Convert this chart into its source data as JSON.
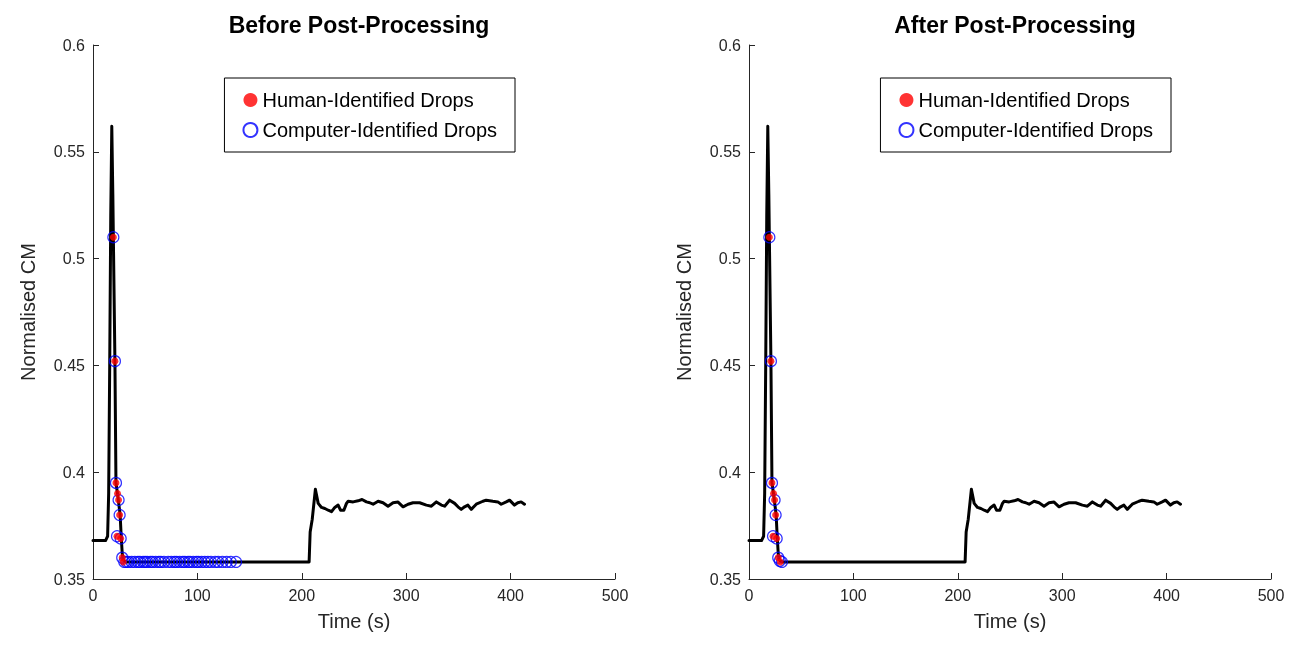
{
  "chart_data": [
    {
      "type": "line",
      "title": "Before Post-Processing",
      "xlabel": "Time (s)",
      "ylabel": "Normalised CM",
      "xlim": [
        0,
        500
      ],
      "xticks": [
        0,
        100,
        200,
        300,
        400,
        500
      ],
      "ylim": [
        0.35,
        0.6
      ],
      "yticks": [
        0.35,
        0.4,
        0.45,
        0.5,
        0.55,
        0.6
      ],
      "grid": false,
      "legend": "top right",
      "series": [
        {
          "color": "#000000",
          "marker": "none",
          "line_style": "solid",
          "x": [
            0,
            12,
            14,
            15,
            16,
            17,
            18,
            19,
            19.5,
            21,
            22,
            24,
            26,
            27,
            28,
            29,
            31,
            100,
            150,
            207,
            208,
            210,
            213,
            215.7,
            218.9,
            222.1,
            225.3,
            228.5,
            231.6,
            234.8,
            237.1,
            240.3,
            242.8,
            244.4,
            249.2,
            253.9,
            257.7,
            261.9,
            265.1,
            268.3,
            273.1,
            277.8,
            282.6,
            287.4,
            292.2,
            297,
            301.8,
            306.5,
            312.9,
            319.3,
            324.1,
            328.9,
            333.7,
            336.8,
            341.6,
            346.4,
            349.6,
            352.7,
            355.9,
            359.1,
            362.3,
            367.1,
            373.5,
            376.6,
            383,
            387.8,
            391,
            395.8,
            399,
            403.7,
            406.9,
            410.1,
            413.3
          ],
          "values": [
            0.368,
            0.368,
            0.37,
            0.39,
            0.45,
            0.52,
            0.562,
            0.53,
            0.51,
            0.452,
            0.395,
            0.388,
            0.38,
            0.37,
            0.362,
            0.359,
            0.358,
            0.358,
            0.358,
            0.358,
            0.372,
            0.378,
            0.392,
            0.3854,
            0.3835,
            0.383,
            0.3822,
            0.3815,
            0.3835,
            0.3846,
            0.3822,
            0.3822,
            0.3854,
            0.3864,
            0.3861,
            0.3866,
            0.3872,
            0.3861,
            0.3857,
            0.385,
            0.3864,
            0.3857,
            0.3841,
            0.3857,
            0.386,
            0.3838,
            0.385,
            0.3857,
            0.3857,
            0.3846,
            0.3841,
            0.3861,
            0.3846,
            0.3841,
            0.3869,
            0.3854,
            0.3838,
            0.3826,
            0.3838,
            0.3846,
            0.3826,
            0.385,
            0.3864,
            0.3869,
            0.3864,
            0.3861,
            0.385,
            0.3861,
            0.3869,
            0.3846,
            0.3857,
            0.3861,
            0.385
          ]
        },
        {
          "type": "scatter",
          "name": "Human-Identified Drops",
          "color": "#ff0000",
          "marker": "circle",
          "x": [
            19.5,
            21,
            22,
            23.5,
            24.5,
            25.5,
            23,
            26.5,
            28,
            29
          ],
          "values": [
            0.51,
            0.452,
            0.395,
            0.39,
            0.387,
            0.38,
            0.37,
            0.369,
            0.36,
            0.358
          ]
        },
        {
          "type": "scatter",
          "name": "Computer-Identified Drops",
          "color": "#0000ff",
          "marker": "circle",
          "x": [
            19.5,
            21,
            22,
            24.5,
            25.5,
            23,
            26.5,
            28,
            30,
            32,
            34,
            37,
            40,
            43,
            45,
            48,
            50,
            52,
            55,
            57,
            60,
            63,
            65,
            68,
            72,
            75,
            78,
            80,
            83,
            86,
            88,
            91,
            93,
            96,
            99,
            101,
            104,
            107,
            110,
            113,
            117,
            120,
            124,
            128,
            132,
            137
          ],
          "values": [
            0.51,
            0.452,
            0.395,
            0.387,
            0.38,
            0.37,
            0.369,
            0.36,
            0.358,
            0.358,
            0.358,
            0.358,
            0.358,
            0.358,
            0.358,
            0.358,
            0.358,
            0.358,
            0.358,
            0.358,
            0.358,
            0.358,
            0.358,
            0.358,
            0.358,
            0.358,
            0.358,
            0.358,
            0.358,
            0.358,
            0.358,
            0.358,
            0.358,
            0.358,
            0.358,
            0.358,
            0.358,
            0.358,
            0.358,
            0.358,
            0.358,
            0.358,
            0.358,
            0.358,
            0.358,
            0.358
          ]
        }
      ]
    },
    {
      "type": "line",
      "title": "After Post-Processing",
      "xlabel": "Time (s)",
      "ylabel": "Normalised CM",
      "xlim": [
        0,
        500
      ],
      "xticks": [
        0,
        100,
        200,
        300,
        400,
        500
      ],
      "ylim": [
        0.35,
        0.6
      ],
      "yticks": [
        0.35,
        0.4,
        0.45,
        0.5,
        0.55,
        0.6
      ],
      "grid": false,
      "legend": "top right",
      "series": [
        {
          "color": "#000000",
          "marker": "none",
          "line_style": "solid",
          "x": [
            0,
            12,
            14,
            15,
            16,
            17,
            18,
            19,
            19.5,
            21,
            22,
            24,
            26,
            27,
            28,
            29,
            31,
            100,
            150,
            207,
            208,
            210,
            213,
            215.7,
            218.9,
            222.1,
            225.3,
            228.5,
            231.6,
            234.8,
            237.1,
            240.3,
            242.8,
            244.4,
            249.2,
            253.9,
            257.7,
            261.9,
            265.1,
            268.3,
            273.1,
            277.8,
            282.6,
            287.4,
            292.2,
            297,
            301.8,
            306.5,
            312.9,
            319.3,
            324.1,
            328.9,
            333.7,
            336.8,
            341.6,
            346.4,
            349.6,
            352.7,
            355.9,
            359.1,
            362.3,
            367.1,
            373.5,
            376.6,
            383,
            387.8,
            391,
            395.8,
            399,
            403.7,
            406.9,
            410.1,
            413.3
          ],
          "values": [
            0.368,
            0.368,
            0.37,
            0.39,
            0.45,
            0.52,
            0.562,
            0.53,
            0.51,
            0.452,
            0.395,
            0.388,
            0.38,
            0.37,
            0.362,
            0.359,
            0.358,
            0.358,
            0.358,
            0.358,
            0.372,
            0.378,
            0.392,
            0.3854,
            0.3835,
            0.383,
            0.3822,
            0.3815,
            0.3835,
            0.3846,
            0.3822,
            0.3822,
            0.3854,
            0.3864,
            0.3861,
            0.3866,
            0.3872,
            0.3861,
            0.3857,
            0.385,
            0.3864,
            0.3857,
            0.3841,
            0.3857,
            0.386,
            0.3838,
            0.385,
            0.3857,
            0.3857,
            0.3846,
            0.3841,
            0.3861,
            0.3846,
            0.3841,
            0.3869,
            0.3854,
            0.3838,
            0.3826,
            0.3838,
            0.3846,
            0.3826,
            0.385,
            0.3864,
            0.3869,
            0.3864,
            0.3861,
            0.385,
            0.3861,
            0.3869,
            0.3846,
            0.3857,
            0.3861,
            0.385
          ]
        },
        {
          "type": "scatter",
          "name": "Human-Identified Drops",
          "color": "#ff0000",
          "marker": "circle",
          "x": [
            19.5,
            21,
            22,
            23.5,
            24.5,
            25.5,
            23,
            26.5,
            28,
            30
          ],
          "values": [
            0.51,
            0.452,
            0.395,
            0.39,
            0.387,
            0.38,
            0.37,
            0.369,
            0.36,
            0.358
          ]
        },
        {
          "type": "scatter",
          "name": "Computer-Identified Drops",
          "color": "#0000ff",
          "marker": "circle",
          "x": [
            19.5,
            21,
            22,
            24.5,
            25.5,
            23,
            26.5,
            28,
            29.5,
            31.5
          ],
          "values": [
            0.51,
            0.452,
            0.395,
            0.387,
            0.38,
            0.37,
            0.369,
            0.36,
            0.3585,
            0.358
          ]
        }
      ]
    }
  ]
}
